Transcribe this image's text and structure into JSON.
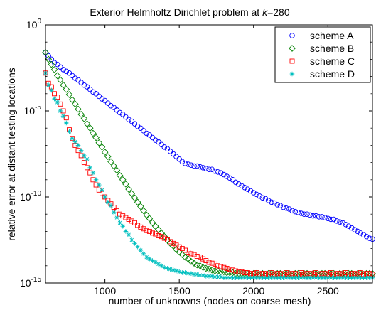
{
  "chart_data": {
    "type": "scatter",
    "title_prefix": "Exterior Helmholtz Dirichlet problem at ",
    "title_var": "k",
    "title_suffix": "=280",
    "xlabel": "number of unknowns (nodes on coarse mesh)",
    "ylabel": "relative error at distant testing locations",
    "xlim": [
      600,
      2800
    ],
    "ylim_log10": [
      -15,
      0
    ],
    "yscale": "log",
    "xticks": [
      1000,
      1500,
      2000,
      2500
    ],
    "xtick_labels": [
      "1000",
      "1500",
      "2000",
      "2500"
    ],
    "yticks_log10": [
      0,
      -5,
      -10,
      -15
    ],
    "ytick_base": "10",
    "ytick_exponents": [
      "0",
      "-5",
      "-10",
      "-15"
    ],
    "grid": false,
    "legend_position": "top-right",
    "series": [
      {
        "name": "scheme A",
        "marker": "circle",
        "color": "#0000ff",
        "x_start": 600,
        "x_step": 20,
        "log10_values": [
          -1.6,
          -1.8,
          -2.0,
          -2.2,
          -2.3,
          -2.45,
          -2.6,
          -2.7,
          -2.8,
          -2.95,
          -3.1,
          -3.2,
          -3.35,
          -3.5,
          -3.6,
          -3.75,
          -3.9,
          -4.0,
          -4.15,
          -4.3,
          -4.4,
          -4.55,
          -4.7,
          -4.8,
          -4.95,
          -5.1,
          -5.2,
          -5.35,
          -5.5,
          -5.6,
          -5.75,
          -5.9,
          -6.0,
          -6.15,
          -6.3,
          -6.4,
          -6.55,
          -6.7,
          -6.8,
          -6.95,
          -7.1,
          -7.2,
          -7.35,
          -7.5,
          -7.65,
          -7.8,
          -7.95,
          -8.05,
          -8.1,
          -8.15,
          -8.2,
          -8.2,
          -8.25,
          -8.3,
          -8.35,
          -8.4,
          -8.4,
          -8.5,
          -8.55,
          -8.6,
          -8.7,
          -8.8,
          -8.9,
          -9.0,
          -9.15,
          -9.25,
          -9.35,
          -9.45,
          -9.55,
          -9.65,
          -9.75,
          -9.85,
          -9.95,
          -10.05,
          -10.1,
          -10.2,
          -10.3,
          -10.35,
          -10.45,
          -10.5,
          -10.6,
          -10.65,
          -10.7,
          -10.8,
          -10.85,
          -10.9,
          -10.95,
          -11.0,
          -11.0,
          -11.05,
          -11.1,
          -11.1,
          -11.15,
          -11.15,
          -11.2,
          -11.25,
          -11.3,
          -11.3,
          -11.4,
          -11.45,
          -11.5,
          -11.6,
          -11.7,
          -11.8,
          -11.9,
          -12.0,
          -12.1,
          -12.2,
          -12.3,
          -12.4,
          -12.45
        ]
      },
      {
        "name": "scheme B",
        "marker": "diamond",
        "color": "#008000",
        "x_start": 600,
        "x_step": 20,
        "log10_values": [
          -1.6,
          -2.0,
          -2.3,
          -2.6,
          -2.95,
          -3.2,
          -3.5,
          -3.75,
          -4.05,
          -4.35,
          -4.6,
          -4.9,
          -5.2,
          -5.45,
          -5.75,
          -6.0,
          -6.3,
          -6.55,
          -6.85,
          -7.1,
          -7.4,
          -7.65,
          -7.95,
          -8.2,
          -8.45,
          -8.75,
          -9.0,
          -9.25,
          -9.55,
          -9.8,
          -10.05,
          -10.3,
          -10.55,
          -10.8,
          -11.05,
          -11.25,
          -11.5,
          -11.7,
          -11.9,
          -12.1,
          -12.3,
          -12.5,
          -12.7,
          -12.85,
          -13.05,
          -13.2,
          -13.35,
          -13.5,
          -13.6,
          -13.75,
          -13.85,
          -13.95,
          -14.0,
          -14.1,
          -14.15,
          -14.2,
          -14.25,
          -14.3,
          -14.3,
          -14.35,
          -14.35,
          -14.4,
          -14.4,
          -14.4,
          -14.45,
          -14.45,
          -14.45,
          -14.45,
          -14.45,
          -14.5,
          -14.45,
          -14.45,
          -14.5,
          -14.45,
          -14.5,
          -14.45,
          -14.45,
          -14.5,
          -14.45,
          -14.45,
          -14.5,
          -14.45,
          -14.45,
          -14.5,
          -14.45,
          -14.45,
          -14.5,
          -14.45,
          -14.45,
          -14.5,
          -14.45,
          -14.45,
          -14.5,
          -14.45,
          -14.45,
          -14.5,
          -14.45,
          -14.45,
          -14.5,
          -14.45,
          -14.45,
          -14.5,
          -14.45,
          -14.45,
          -14.5,
          -14.45,
          -14.45,
          -14.5,
          -14.45,
          -14.45,
          -14.45
        ]
      },
      {
        "name": "scheme C",
        "marker": "square",
        "color": "#ff0000",
        "x_start": 600,
        "x_step": 20,
        "log10_values": [
          -2.8,
          -3.4,
          -3.6,
          -4.0,
          -4.2,
          -4.6,
          -5.0,
          -5.4,
          -6.1,
          -6.6,
          -7.0,
          -7.3,
          -7.6,
          -8.0,
          -8.3,
          -8.6,
          -9.0,
          -9.3,
          -9.6,
          -9.8,
          -10.0,
          -10.2,
          -10.4,
          -10.6,
          -10.8,
          -11.0,
          -11.1,
          -11.2,
          -11.3,
          -11.4,
          -11.5,
          -11.65,
          -11.75,
          -11.85,
          -11.95,
          -12.0,
          -12.1,
          -12.15,
          -12.25,
          -12.3,
          -12.4,
          -12.5,
          -12.6,
          -12.7,
          -12.8,
          -12.9,
          -13.0,
          -13.1,
          -13.2,
          -13.3,
          -13.35,
          -13.45,
          -13.5,
          -13.6,
          -13.7,
          -13.8,
          -13.85,
          -13.9,
          -14.0,
          -14.05,
          -14.1,
          -14.15,
          -14.2,
          -14.25,
          -14.3,
          -14.35,
          -14.35,
          -14.4,
          -14.4,
          -14.45,
          -14.45,
          -14.4,
          -14.5,
          -14.45,
          -14.45,
          -14.5,
          -14.4,
          -14.5,
          -14.45,
          -14.45,
          -14.5,
          -14.4,
          -14.5,
          -14.45,
          -14.45,
          -14.5,
          -14.4,
          -14.5,
          -14.45,
          -14.45,
          -14.5,
          -14.4,
          -14.5,
          -14.45,
          -14.45,
          -14.5,
          -14.4,
          -14.5,
          -14.45,
          -14.45,
          -14.5,
          -14.4,
          -14.5,
          -14.45,
          -14.45,
          -14.5,
          -14.4,
          -14.5,
          -14.45,
          -14.45,
          -14.5
        ]
      },
      {
        "name": "scheme D",
        "marker": "asterisk",
        "color": "#00bfbf",
        "x_start": 600,
        "x_step": 20,
        "log10_values": [
          -2.8,
          -3.5,
          -3.8,
          -4.3,
          -4.5,
          -5.0,
          -5.3,
          -5.7,
          -6.2,
          -6.6,
          -6.8,
          -7.0,
          -7.3,
          -7.6,
          -7.8,
          -8.3,
          -8.6,
          -9.0,
          -9.3,
          -9.6,
          -10.0,
          -10.3,
          -10.5,
          -10.9,
          -11.2,
          -11.5,
          -11.7,
          -12.0,
          -12.2,
          -12.5,
          -12.7,
          -12.9,
          -13.1,
          -13.3,
          -13.5,
          -13.6,
          -13.7,
          -13.8,
          -13.9,
          -14.0,
          -14.1,
          -14.15,
          -14.2,
          -14.25,
          -14.3,
          -14.35,
          -14.4,
          -14.4,
          -14.45,
          -14.45,
          -14.5,
          -14.5,
          -14.55,
          -14.55,
          -14.6,
          -14.6,
          -14.6,
          -14.65,
          -14.65,
          -14.65,
          -14.7,
          -14.7,
          -14.7,
          -14.7,
          -14.7,
          -14.7,
          -14.7,
          -14.7,
          -14.7,
          -14.7,
          -14.7,
          -14.7,
          -14.7,
          -14.7,
          -14.7,
          -14.7,
          -14.7,
          -14.7,
          -14.7,
          -14.7,
          -14.7,
          -14.7,
          -14.7,
          -14.7,
          -14.7,
          -14.7,
          -14.7,
          -14.7,
          -14.7,
          -14.7,
          -14.7,
          -14.7,
          -14.7,
          -14.7,
          -14.7,
          -14.7,
          -14.7,
          -14.7,
          -14.7,
          -14.7,
          -14.7,
          -14.7,
          -14.7,
          -14.7,
          -14.7,
          -14.7,
          -14.7,
          -14.7,
          -14.7,
          -14.7,
          -14.7
        ]
      }
    ]
  }
}
